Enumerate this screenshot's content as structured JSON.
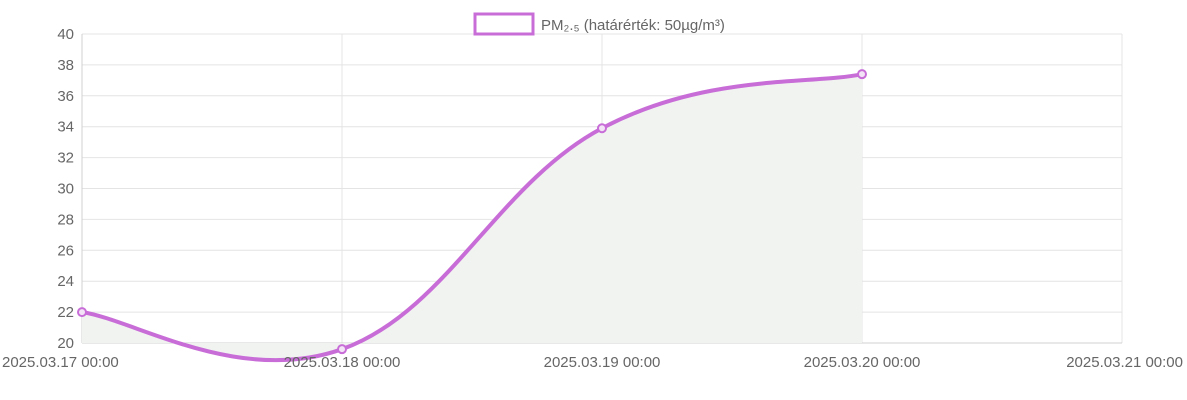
{
  "chart_data": {
    "type": "line",
    "legend": {
      "label": "PM₂.₅ (határérték: 50µg/m³)",
      "placement": "top-center"
    },
    "x": [
      "2025.03.17 00:00",
      "2025.03.18 00:00",
      "2025.03.19 00:00",
      "2025.03.20 00:00"
    ],
    "x_ticks": [
      "2025.03.17 00:00",
      "2025.03.18 00:00",
      "2025.03.19 00:00",
      "2025.03.20 00:00",
      "2025.03.21 00:00"
    ],
    "series": [
      {
        "name": "PM₂.₅ (határérték: 50µg/m³)",
        "values": [
          22.0,
          19.6,
          33.9,
          37.4
        ],
        "color": "#c86dd7",
        "fill": "#f1f3f1"
      }
    ],
    "ylim": [
      20,
      40
    ],
    "y_ticks": [
      20,
      22,
      24,
      26,
      28,
      30,
      32,
      34,
      36,
      38,
      40
    ],
    "grid": true,
    "xlabel": "",
    "ylabel": ""
  }
}
